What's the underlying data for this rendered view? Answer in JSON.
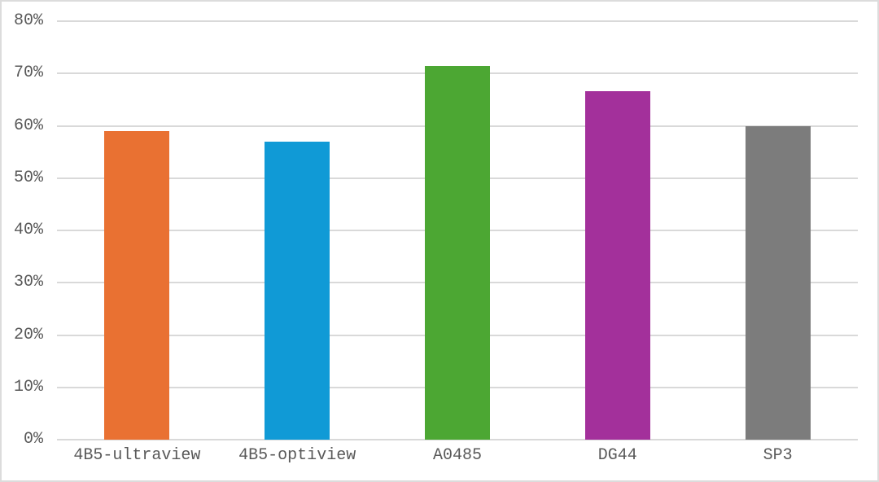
{
  "chart": {
    "background": "#ffffff",
    "border_color": "#dcdcdc",
    "grid_color": "#d9d9d9",
    "axis_line_color": "#d9d9d9",
    "text_color": "#595959"
  },
  "chart_data": {
    "type": "bar",
    "title": "",
    "xlabel": "",
    "ylabel": "",
    "categories": [
      "4B5-ultraview",
      "4B5-optiview",
      "A0485",
      "DG44",
      "SP3"
    ],
    "values": [
      59,
      57,
      71.5,
      66.7,
      60
    ],
    "colors": [
      "#E97132",
      "#109AD6",
      "#4CA733",
      "#A3309B",
      "#7C7C7C"
    ],
    "ylim": [
      0,
      80
    ],
    "ytick_step": 10,
    "ytick_labels": [
      "0%",
      "10%",
      "20%",
      "30%",
      "40%",
      "50%",
      "60%",
      "70%",
      "80%"
    ],
    "grid": true,
    "legend": false
  }
}
